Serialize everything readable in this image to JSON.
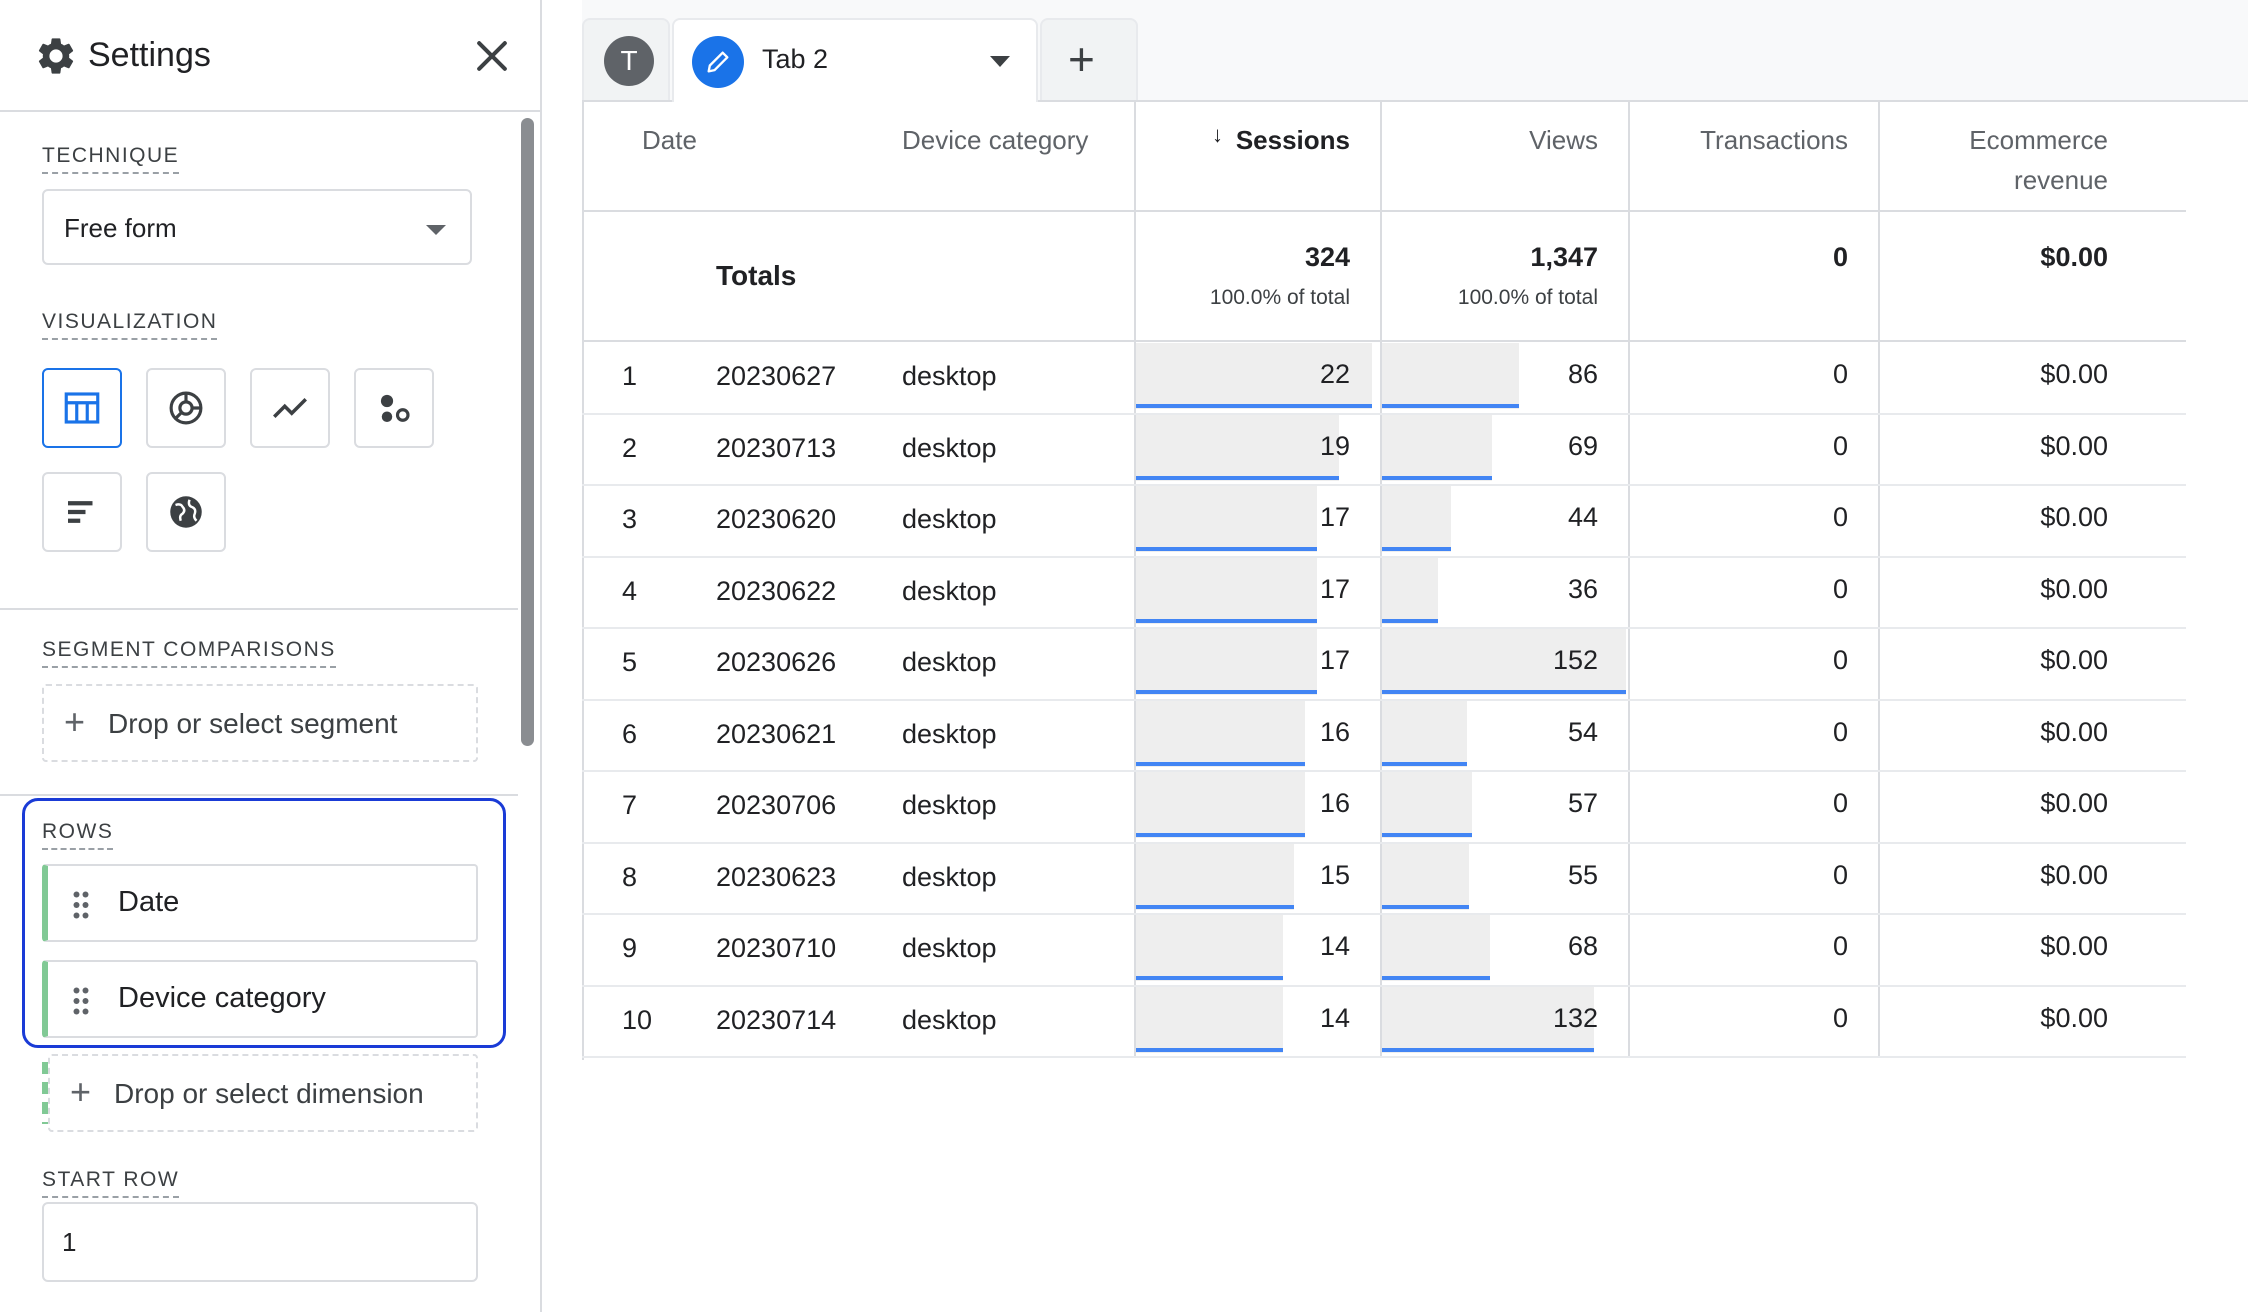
{
  "settings": {
    "title": "Settings",
    "technique_label": "TECHNIQUE",
    "technique_value": "Free form",
    "visualization_label": "VISUALIZATION",
    "visualizations": [
      {
        "icon": "table-icon",
        "active": true
      },
      {
        "icon": "donut-chart-icon",
        "active": false
      },
      {
        "icon": "line-chart-icon",
        "active": false
      },
      {
        "icon": "scatter-plot-icon",
        "active": false
      },
      {
        "icon": "bar-chart-icon",
        "active": false
      },
      {
        "icon": "geo-map-icon",
        "active": false
      }
    ],
    "segment_label": "SEGMENT COMPARISONS",
    "segment_drop": "Drop or select segment",
    "rows_label": "ROWS",
    "rows": [
      "Date",
      "Device category"
    ],
    "dimension_drop": "Drop or select dimension",
    "start_row_label": "START ROW",
    "start_row_value": "1"
  },
  "tabs": {
    "leading_avatar": "T",
    "active_label": "Tab 2"
  },
  "table": {
    "headers": {
      "date": "Date",
      "device": "Device category",
      "sessions": "Sessions",
      "views": "Views",
      "transactions": "Transactions",
      "revenue_line1": "Ecommerce",
      "revenue_line2": "revenue"
    },
    "sort_arrow": "↓",
    "totals": {
      "label": "Totals",
      "sessions": "324",
      "sessions_pct": "100.0% of total",
      "views": "1,347",
      "views_pct": "100.0% of total",
      "transactions": "0",
      "revenue": "$0.00"
    },
    "rows": [
      {
        "index": "1",
        "date": "20230627",
        "device": "desktop",
        "sessions": 22,
        "views": 86,
        "transactions": "0",
        "revenue": "$0.00"
      },
      {
        "index": "2",
        "date": "20230713",
        "device": "desktop",
        "sessions": 19,
        "views": 69,
        "transactions": "0",
        "revenue": "$0.00"
      },
      {
        "index": "3",
        "date": "20230620",
        "device": "desktop",
        "sessions": 17,
        "views": 44,
        "transactions": "0",
        "revenue": "$0.00"
      },
      {
        "index": "4",
        "date": "20230622",
        "device": "desktop",
        "sessions": 17,
        "views": 36,
        "transactions": "0",
        "revenue": "$0.00"
      },
      {
        "index": "5",
        "date": "20230626",
        "device": "desktop",
        "sessions": 17,
        "views": 152,
        "transactions": "0",
        "revenue": "$0.00"
      },
      {
        "index": "6",
        "date": "20230621",
        "device": "desktop",
        "sessions": 16,
        "views": 54,
        "transactions": "0",
        "revenue": "$0.00"
      },
      {
        "index": "7",
        "date": "20230706",
        "device": "desktop",
        "sessions": 16,
        "views": 57,
        "transactions": "0",
        "revenue": "$0.00"
      },
      {
        "index": "8",
        "date": "20230623",
        "device": "desktop",
        "sessions": 15,
        "views": 55,
        "transactions": "0",
        "revenue": "$0.00"
      },
      {
        "index": "9",
        "date": "20230710",
        "device": "desktop",
        "sessions": 14,
        "views": 68,
        "transactions": "0",
        "revenue": "$0.00"
      },
      {
        "index": "10",
        "date": "20230714",
        "device": "desktop",
        "sessions": 14,
        "views": 132,
        "transactions": "0",
        "revenue": "$0.00"
      }
    ]
  },
  "colors": {
    "accent": "#1a73e8",
    "bar_line": "#4285f4",
    "bar_bg": "#eeeeee",
    "row_chip": "#81c995",
    "highlight_frame": "#1a3bd6"
  }
}
